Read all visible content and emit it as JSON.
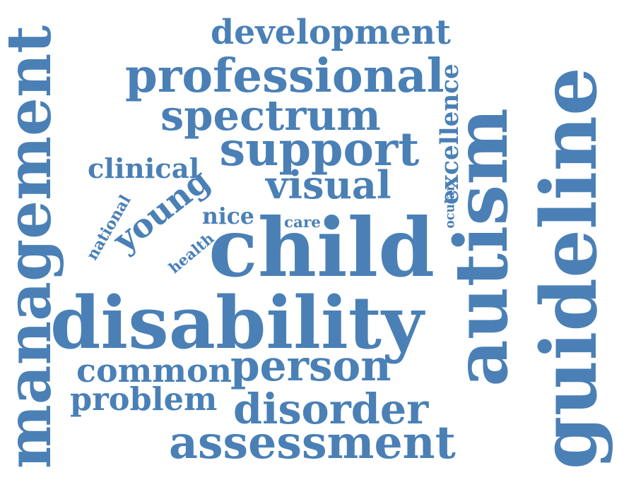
{
  "word_cloud": {
    "color": "#4a80b6",
    "background": "#ffffff",
    "words": [
      {
        "text": "child",
        "rank": 1,
        "orientation": "horizontal"
      },
      {
        "text": "disability",
        "rank": 2,
        "orientation": "horizontal"
      },
      {
        "text": "guideline",
        "rank": 3,
        "orientation": "vertical"
      },
      {
        "text": "management",
        "rank": 4,
        "orientation": "vertical"
      },
      {
        "text": "autism",
        "rank": 5,
        "orientation": "vertical"
      },
      {
        "text": "assessment",
        "rank": 6,
        "orientation": "horizontal"
      },
      {
        "text": "professional",
        "rank": 7,
        "orientation": "horizontal"
      },
      {
        "text": "support",
        "rank": 8,
        "orientation": "horizontal"
      },
      {
        "text": "person",
        "rank": 9,
        "orientation": "horizontal"
      },
      {
        "text": "disorder",
        "rank": 10,
        "orientation": "horizontal"
      },
      {
        "text": "spectrum",
        "rank": 11,
        "orientation": "horizontal"
      },
      {
        "text": "visual",
        "rank": 12,
        "orientation": "horizontal"
      },
      {
        "text": "young",
        "rank": 13,
        "orientation": "diagonal"
      },
      {
        "text": "development",
        "rank": 14,
        "orientation": "horizontal"
      },
      {
        "text": "common",
        "rank": 15,
        "orientation": "horizontal"
      },
      {
        "text": "problem",
        "rank": 16,
        "orientation": "horizontal"
      },
      {
        "text": "excellence",
        "rank": 17,
        "orientation": "vertical"
      },
      {
        "text": "clinical",
        "rank": 18,
        "orientation": "horizontal"
      },
      {
        "text": "nice",
        "rank": 19,
        "orientation": "horizontal"
      },
      {
        "text": "national",
        "rank": 20,
        "orientation": "diagonal"
      },
      {
        "text": "health",
        "rank": 21,
        "orientation": "diagonal"
      },
      {
        "text": "care",
        "rank": 22,
        "orientation": "horizontal"
      },
      {
        "text": "ocular",
        "rank": 23,
        "orientation": "vertical"
      }
    ]
  }
}
